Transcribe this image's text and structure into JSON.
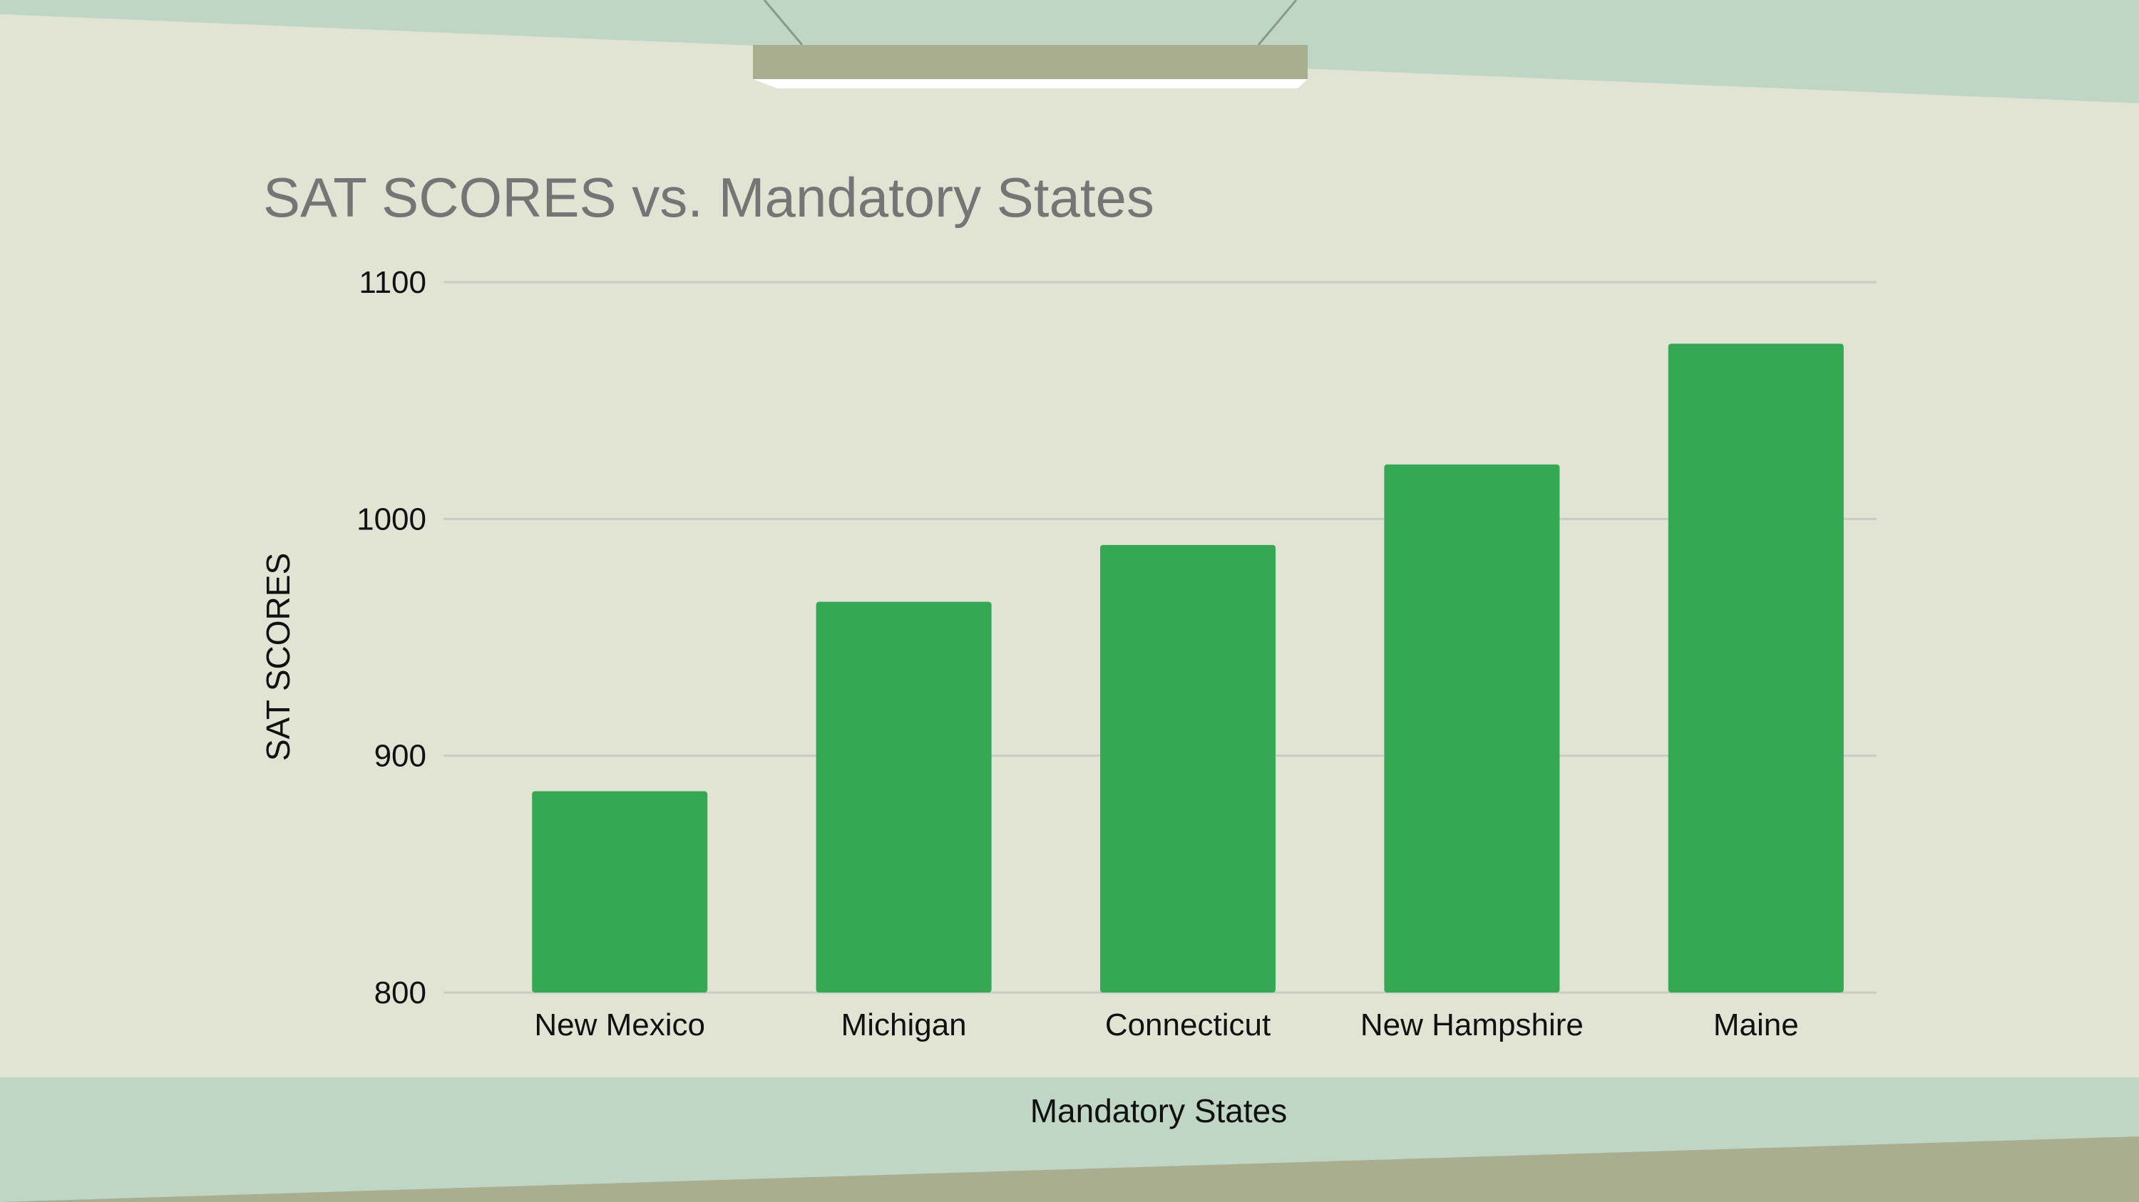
{
  "colors": {
    "background": "#e1e4d3",
    "accent_band": "#c0d6c4",
    "olive": "#a8ae8e",
    "bar": "#34a853",
    "grid": "#c9ccc5"
  },
  "chart_data": {
    "type": "bar",
    "title": "SAT SCORES vs. Mandatory States",
    "xlabel": "Mandatory States",
    "ylabel": "SAT SCORES",
    "categories": [
      "New Mexico",
      "Michigan",
      "Connecticut",
      "New Hampshire",
      "Maine"
    ],
    "values": [
      885,
      965,
      989,
      1023,
      1074
    ],
    "ylim": [
      800,
      1100
    ],
    "yticks": [
      800,
      900,
      1000,
      1100
    ],
    "grid": true,
    "legend": "none"
  }
}
